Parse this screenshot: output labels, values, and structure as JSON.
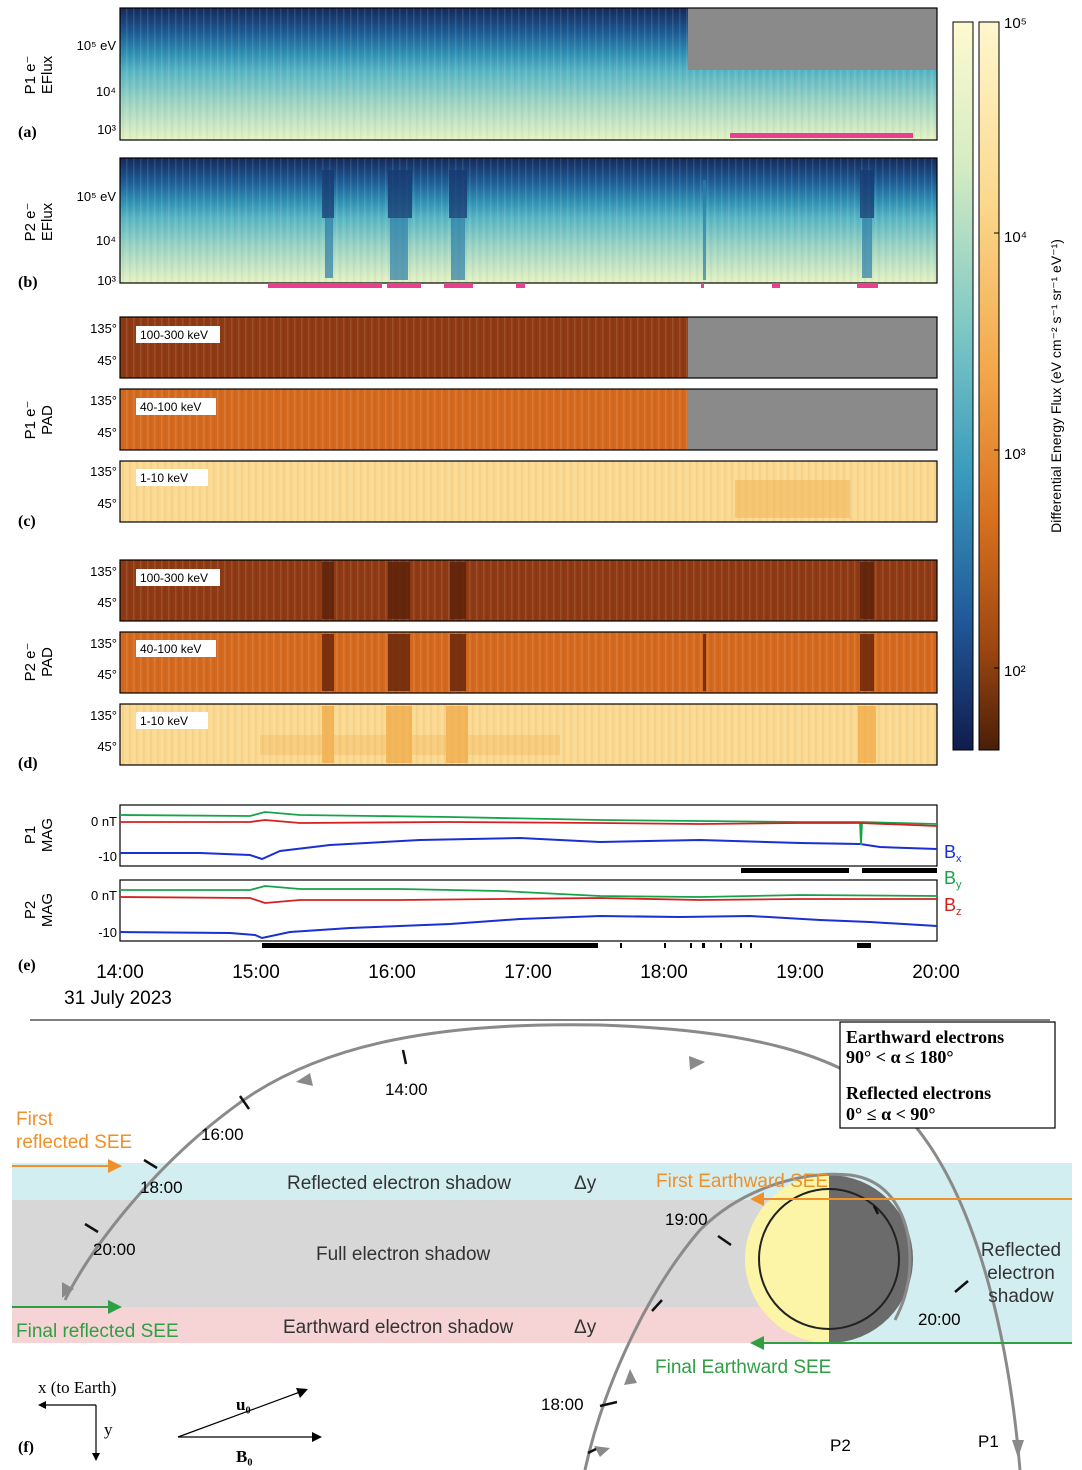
{
  "panels": {
    "a": {
      "letter": "(a)",
      "ylabel1": "P1 e⁻",
      "ylabel2": "EFlux",
      "ticks": [
        "10⁵ eV",
        "10⁴",
        "10³"
      ]
    },
    "b": {
      "letter": "(b)",
      "ylabel1": "P2 e⁻",
      "ylabel2": "EFlux",
      "ticks": [
        "10⁵ eV",
        "10⁴",
        "10³"
      ]
    },
    "c": {
      "letter": "(c)",
      "ylabel1": "P1 e⁻",
      "ylabel2": "PAD",
      "subpanels": [
        {
          "label": "100-300 keV"
        },
        {
          "label": "40-100 keV"
        },
        {
          "label": "1-10 keV"
        }
      ]
    },
    "d": {
      "letter": "(d)",
      "ylabel1": "P2 e⁻",
      "ylabel2": "PAD",
      "subpanels": [
        {
          "label": "100-300 keV"
        },
        {
          "label": "40-100 keV"
        },
        {
          "label": "1-10 keV"
        }
      ]
    },
    "e": {
      "letter": "(e)",
      "p1_label1": "P1",
      "p1_label2": "MAG",
      "p2_label1": "P2",
      "p2_label2": "MAG",
      "ticks": [
        "0 nT",
        "-10"
      ]
    },
    "pad_ticks": [
      "135°",
      "45°"
    ]
  },
  "colorbar": {
    "title": "Differential Energy Flux (eV cm⁻² s⁻¹ sr⁻¹ eV⁻¹)",
    "ticks": [
      "10⁵",
      "10⁴",
      "10³",
      "10²"
    ]
  },
  "legend_mag": {
    "bx": "Bx",
    "by": "By",
    "bz": "Bz",
    "bx_color": "#1a2fd4",
    "by_color": "#17a34a",
    "bz_color": "#d42020"
  },
  "time_axis": {
    "ticks": [
      "14:00",
      "15:00",
      "16:00",
      "17:00",
      "18:00",
      "19:00",
      "20:00"
    ],
    "date": "31 July 2023"
  },
  "diagram": {
    "letter": "(f)",
    "legend": {
      "line1": "Earthward electrons",
      "line2": "90° < α ≤ 180°",
      "line3": "Reflected electrons",
      "line4": "0° ≤ α < 90°"
    },
    "bands": {
      "reflected_shadow": "Reflected electron shadow",
      "full_shadow": "Full electron shadow",
      "earthward_shadow": "Earthward electron shadow",
      "delta_y": "Δy",
      "reflected_right": [
        "Reflected",
        "electron",
        "shadow"
      ]
    },
    "see": {
      "first_reflected": [
        "First",
        "reflected SEE"
      ],
      "final_reflected": "Final reflected SEE",
      "first_earthward": "First Earthward SEE",
      "final_earthward": "Final Earthward SEE"
    },
    "orbit_times_p1": [
      "14:00",
      "16:00",
      "18:00",
      "20:00"
    ],
    "orbit_times_p2": [
      "19:00",
      "18:00"
    ],
    "orbit_time_p1_right": "20:00",
    "probes": {
      "p1": "P1",
      "p2": "P2"
    },
    "axes": {
      "x": "x (to Earth)",
      "y": "y"
    },
    "vectors": {
      "u": "u₀",
      "b": "B₀"
    },
    "colors": {
      "orange": "#f0902a",
      "green": "#2ea043",
      "cyan_band": "#d3eef0",
      "gray_band": "#d7d7d7",
      "pink_band": "#f6d3d5",
      "orbit": "#8a8a8a"
    }
  }
}
